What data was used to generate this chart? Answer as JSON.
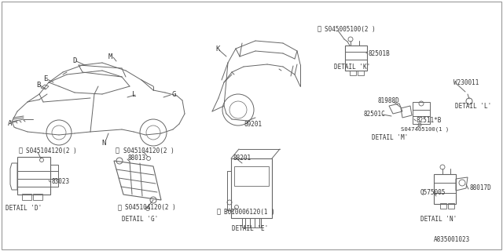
{
  "bg_color": "#ffffff",
  "line_color": "#666666",
  "text_color": "#333333",
  "diagram_id": "A835001023",
  "labels": {
    "detail_d": "DETAIL 'D'",
    "detail_g": "DETAIL 'G'",
    "detail_e": "DETAIL 'E'",
    "detail_k": "DETAIL 'K'",
    "detail_l": "DETAIL 'L'",
    "detail_m": "DETAIL 'M'",
    "detail_n": "DETAIL 'N'",
    "part_83023": "83023",
    "part_88013": "88013",
    "part_88201": "88201",
    "part_82501C": "82501C",
    "part_81988D": "81988D",
    "part_82511B": "82511*B",
    "part_82501B": "82501B",
    "part_88017D": "88017D",
    "part_Q575005": "Q575005",
    "part_W230011": "W230011",
    "part_89201": "89201",
    "screw_045104120": "S045104120(2 )",
    "screw_045005100": "S045005100(2 )",
    "screw_047405100": "S047405100(1 )",
    "bolt_010006120": "B010006120(1 )"
  }
}
